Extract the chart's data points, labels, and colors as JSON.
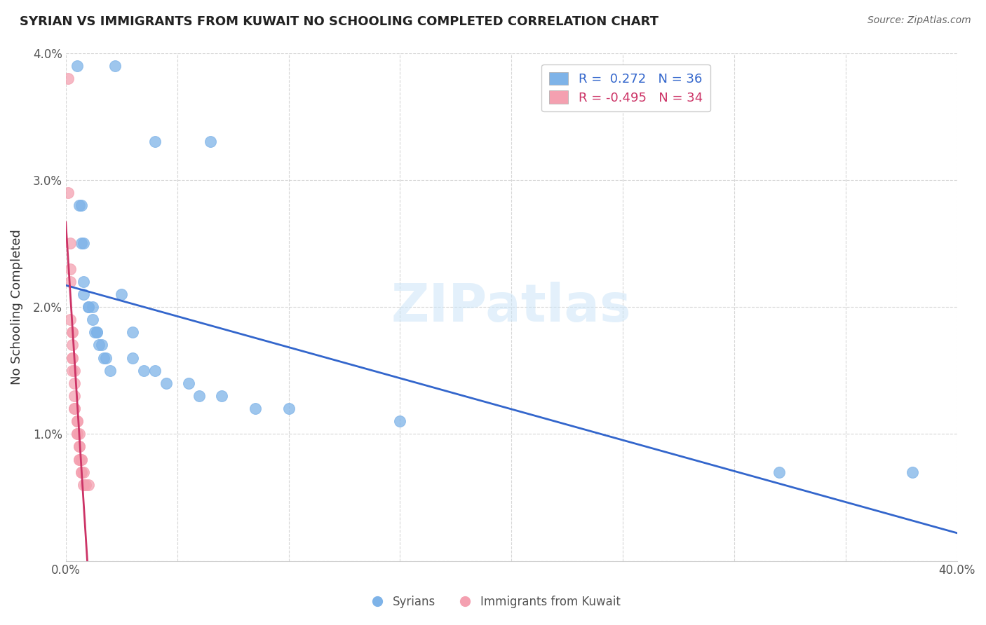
{
  "title": "SYRIAN VS IMMIGRANTS FROM KUWAIT NO SCHOOLING COMPLETED CORRELATION CHART",
  "source": "Source: ZipAtlas.com",
  "ylabel": "No Schooling Completed",
  "xlim": [
    0.0,
    0.4
  ],
  "ylim": [
    0.0,
    0.04
  ],
  "xtick_vals": [
    0.0,
    0.05,
    0.1,
    0.15,
    0.2,
    0.25,
    0.3,
    0.35,
    0.4
  ],
  "xtick_labels": [
    "0.0%",
    "",
    "",
    "",
    "",
    "",
    "",
    "",
    "40.0%"
  ],
  "ytick_vals": [
    0.0,
    0.01,
    0.02,
    0.03,
    0.04
  ],
  "ytick_labels": [
    "",
    "1.0%",
    "2.0%",
    "3.0%",
    "4.0%"
  ],
  "legend_r1": "R =  0.272   N = 36",
  "legend_r2": "R = -0.495   N = 34",
  "legend_label1": "Syrians",
  "legend_label2": "Immigrants from Kuwait",
  "blue_color": "#7EB3E8",
  "pink_color": "#F4A0B0",
  "blue_line_color": "#3366CC",
  "pink_line_color": "#CC3366",
  "watermark": "ZIPatlas",
  "blue_x": [
    0.005,
    0.022,
    0.04,
    0.065,
    0.006,
    0.007,
    0.007,
    0.008,
    0.008,
    0.008,
    0.01,
    0.01,
    0.012,
    0.012,
    0.013,
    0.014,
    0.014,
    0.015,
    0.016,
    0.017,
    0.018,
    0.02,
    0.025,
    0.03,
    0.03,
    0.035,
    0.04,
    0.045,
    0.055,
    0.06,
    0.07,
    0.085,
    0.1,
    0.15,
    0.32,
    0.38
  ],
  "blue_y": [
    0.039,
    0.039,
    0.033,
    0.033,
    0.028,
    0.028,
    0.025,
    0.025,
    0.022,
    0.021,
    0.02,
    0.02,
    0.02,
    0.019,
    0.018,
    0.018,
    0.018,
    0.017,
    0.017,
    0.016,
    0.016,
    0.015,
    0.021,
    0.018,
    0.016,
    0.015,
    0.015,
    0.014,
    0.014,
    0.013,
    0.013,
    0.012,
    0.012,
    0.011,
    0.007,
    0.007
  ],
  "pink_x": [
    0.001,
    0.001,
    0.002,
    0.002,
    0.002,
    0.002,
    0.003,
    0.003,
    0.003,
    0.003,
    0.003,
    0.003,
    0.004,
    0.004,
    0.004,
    0.004,
    0.004,
    0.005,
    0.005,
    0.005,
    0.005,
    0.006,
    0.006,
    0.006,
    0.006,
    0.006,
    0.007,
    0.007,
    0.007,
    0.007,
    0.008,
    0.008,
    0.009,
    0.01
  ],
  "pink_y": [
    0.038,
    0.029,
    0.025,
    0.023,
    0.022,
    0.019,
    0.018,
    0.018,
    0.017,
    0.016,
    0.016,
    0.015,
    0.015,
    0.014,
    0.013,
    0.012,
    0.012,
    0.011,
    0.011,
    0.01,
    0.01,
    0.01,
    0.009,
    0.009,
    0.008,
    0.008,
    0.008,
    0.008,
    0.007,
    0.007,
    0.007,
    0.006,
    0.006,
    0.006
  ]
}
